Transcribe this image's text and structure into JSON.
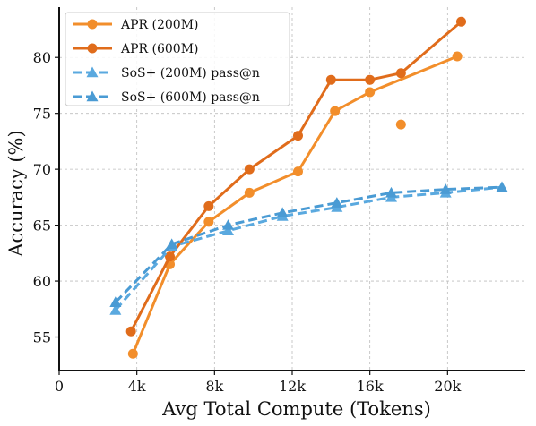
{
  "chart_data": {
    "type": "line",
    "xlabel": "Avg Total Compute (Tokens)",
    "ylabel": "Accuracy (%)",
    "xlim": [
      0,
      24000
    ],
    "ylim": [
      52,
      84.5
    ],
    "xticks": [
      0,
      4000,
      8000,
      12000,
      16000,
      20000
    ],
    "xtick_labels": [
      "0",
      "4k",
      "8k",
      "12k",
      "16k",
      "20k"
    ],
    "yticks": [
      55,
      60,
      65,
      70,
      75,
      80
    ],
    "ytick_labels": [
      "55",
      "60",
      "65",
      "70",
      "75",
      "80"
    ],
    "grid": true,
    "legend_position": "top-left",
    "series": [
      {
        "name": "APR (200M)",
        "color": "#f28e2b",
        "style": "solid",
        "marker": "circle",
        "x": [
          3800,
          5700,
          7700,
          9800,
          12300,
          14200,
          16000,
          20500
        ],
        "y": [
          53.5,
          61.5,
          65.3,
          67.9,
          69.8,
          75.2,
          76.9,
          80.1
        ]
      },
      {
        "name": "APR (600M)",
        "color": "#e06c1b",
        "style": "solid",
        "marker": "circle",
        "x": [
          3700,
          5700,
          7700,
          9800,
          12300,
          14000,
          16000,
          17600,
          20700
        ],
        "y": [
          55.5,
          62.2,
          66.7,
          70.0,
          73.0,
          78.0,
          78.0,
          78.6,
          83.2
        ]
      },
      {
        "name": "SoS+ (200M) pass@n",
        "color": "#5aa9df",
        "style": "dashed",
        "marker": "triangle",
        "x": [
          2900,
          5800,
          8700,
          11500,
          14300,
          17100,
          19900,
          22800
        ],
        "y": [
          57.4,
          63.1,
          64.5,
          65.8,
          66.6,
          67.5,
          67.9,
          68.4
        ]
      },
      {
        "name": "SoS+ (600M) pass@n",
        "color": "#4a9bd4",
        "style": "dashed",
        "marker": "triangle",
        "x": [
          2900,
          5800,
          8700,
          11500,
          14300,
          17100,
          19900,
          22800
        ],
        "y": [
          58.1,
          63.3,
          65.0,
          66.1,
          67.0,
          67.9,
          68.2,
          68.4
        ]
      }
    ],
    "extra_points": [
      {
        "x": 17600,
        "y": 74.0,
        "color": "#f28e2b"
      }
    ]
  }
}
